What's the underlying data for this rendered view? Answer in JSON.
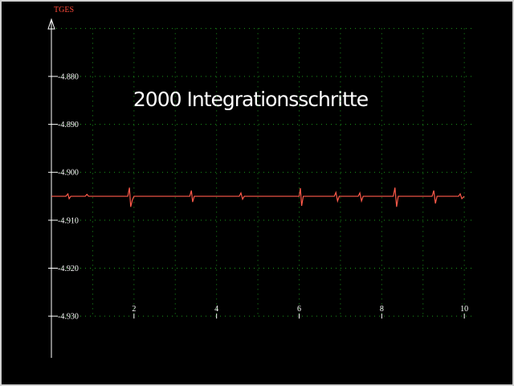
{
  "chart_data": {
    "type": "line",
    "title": "2000 Integrationsschritte",
    "y_label": "TGES",
    "x": [
      0,
      0.35,
      0.4,
      0.43,
      0.47,
      0.82,
      0.86,
      0.9,
      1.85,
      1.89,
      1.92,
      1.96,
      2.0,
      3.35,
      3.39,
      3.42,
      3.46,
      4.55,
      4.59,
      4.63,
      4.67,
      6.0,
      6.03,
      6.06,
      6.1,
      6.85,
      6.89,
      6.93,
      6.97,
      7.43,
      7.47,
      7.51,
      7.55,
      8.28,
      8.32,
      8.36,
      8.4,
      9.22,
      9.26,
      9.3,
      9.34,
      9.86,
      9.9,
      9.94,
      10.0
    ],
    "series": [
      {
        "color": "#ff5a4a",
        "values": [
          -4.905,
          -4.905,
          -4.9045,
          -4.9055,
          -4.905,
          -4.905,
          -4.9046,
          -4.905,
          -4.905,
          -4.9032,
          -4.9072,
          -4.9058,
          -4.905,
          -4.905,
          -4.9038,
          -4.9062,
          -4.905,
          -4.905,
          -4.9043,
          -4.9056,
          -4.905,
          -4.905,
          -4.9033,
          -4.907,
          -4.905,
          -4.905,
          -4.9042,
          -4.906,
          -4.905,
          -4.905,
          -4.9043,
          -4.906,
          -4.905,
          -4.905,
          -4.9032,
          -4.9072,
          -4.905,
          -4.905,
          -4.9038,
          -4.9065,
          -4.905,
          -4.905,
          -4.9045,
          -4.9055,
          -4.905
        ]
      }
    ],
    "xlim": [
      0,
      10.25
    ],
    "ylim": [
      -4.9387,
      -4.8691
    ],
    "xticks": [
      2,
      4,
      6,
      8,
      10
    ],
    "yticks": [
      {
        "value": -4.88,
        "label": "-4.880"
      },
      {
        "value": -4.89,
        "label": "-4.890"
      },
      {
        "value": -4.9,
        "label": "-4.900"
      },
      {
        "value": -4.91,
        "label": "-4.910"
      },
      {
        "value": -4.92,
        "label": "-4.920"
      },
      {
        "value": -4.93,
        "label": "-4.930"
      }
    ],
    "xgrid": [
      1,
      2,
      3,
      4,
      5,
      6,
      7,
      8,
      9,
      10
    ],
    "ygrid": [
      -4.87,
      -4.88,
      -4.89,
      -4.9,
      -4.91,
      -4.92,
      -4.93
    ],
    "grid_color": "#1c9a1c",
    "axis_color": "#ffffff",
    "label_color": "#ff4a3a",
    "background": "#000000"
  }
}
